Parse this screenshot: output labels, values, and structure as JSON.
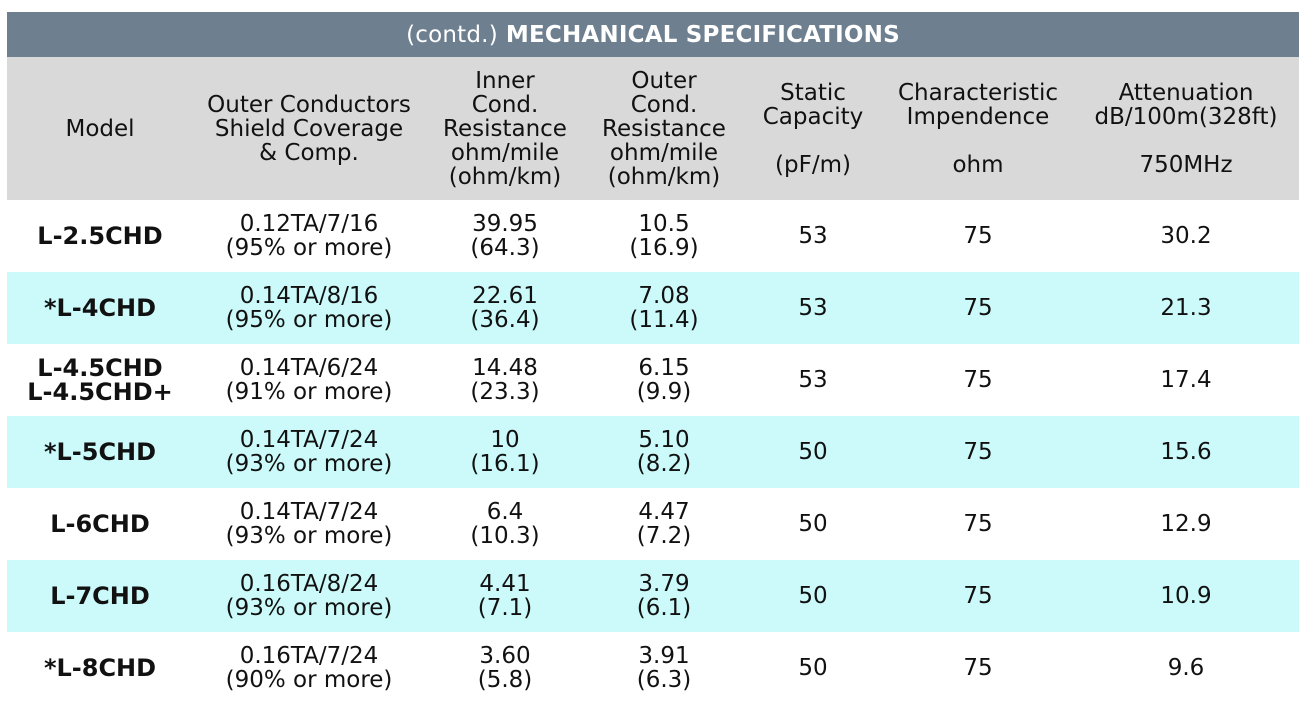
{
  "title": {
    "prefix": "(contd.)",
    "main": "MECHANICAL SPECIFICATIONS"
  },
  "columns": [
    {
      "label": "Model",
      "unit": ""
    },
    {
      "label": "Outer Conductors\nShield Coverage\n& Comp.",
      "unit": ""
    },
    {
      "label": "Inner\nCond.\nResistance\nohm/mile\n(ohm/km)",
      "unit": ""
    },
    {
      "label": "Outer\nCond.\nResistance\nohm/mile\n(ohm/km)",
      "unit": ""
    },
    {
      "label": "Static\nCapacity",
      "unit": "(pF/m)"
    },
    {
      "label": "Characteristic\nImpendence",
      "unit": "ohm"
    },
    {
      "label": "Attenuation\ndB/100m(328ft)",
      "unit": "750MHz"
    }
  ],
  "rows": [
    {
      "model": "L-2.5CHD",
      "shield": "0.12TA/7/16\n(95% or more)",
      "inner": "39.95\n(64.3)",
      "outer": "10.5\n(16.9)",
      "capacity": "53",
      "impedance": "75",
      "attenuation": "30.2"
    },
    {
      "model": "*L-4CHD",
      "shield": "0.14TA/8/16\n(95% or more)",
      "inner": "22.61\n(36.4)",
      "outer": "7.08\n(11.4)",
      "capacity": "53",
      "impedance": "75",
      "attenuation": "21.3"
    },
    {
      "model": "L-4.5CHD\nL-4.5CHD+",
      "shield": "0.14TA/6/24\n(91% or more)",
      "inner": "14.48\n(23.3)",
      "outer": "6.15\n(9.9)",
      "capacity": "53",
      "impedance": "75",
      "attenuation": "17.4"
    },
    {
      "model": "*L-5CHD",
      "shield": "0.14TA/7/24\n(93% or more)",
      "inner": "10\n(16.1)",
      "outer": "5.10\n(8.2)",
      "capacity": "50",
      "impedance": "75",
      "attenuation": "15.6"
    },
    {
      "model": "L-6CHD",
      "shield": "0.14TA/7/24\n(93% or more)",
      "inner": "6.4\n(10.3)",
      "outer": "4.47\n(7.2)",
      "capacity": "50",
      "impedance": "75",
      "attenuation": "12.9"
    },
    {
      "model": "L-7CHD",
      "shield": "0.16TA/8/24\n(93% or more)",
      "inner": "4.41\n(7.1)",
      "outer": "3.79\n(6.1)",
      "capacity": "50",
      "impedance": "75",
      "attenuation": "10.9"
    },
    {
      "model": "*L-8CHD",
      "shield": "0.16TA/7/24\n(90% or more)",
      "inner": "3.60\n(5.8)",
      "outer": "3.91\n(6.3)",
      "capacity": "50",
      "impedance": "75",
      "attenuation": "9.6"
    }
  ],
  "colors": {
    "title_bg": "#6e7f90",
    "header_bg": "#d9d9d9",
    "alt_row_bg": "#ccfafa",
    "row_bg": "#ffffff"
  }
}
